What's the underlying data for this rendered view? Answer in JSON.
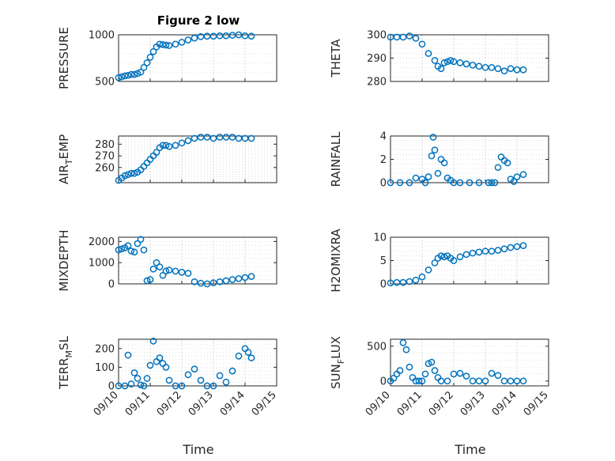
{
  "figure": {
    "title": "Figure 2 low",
    "xlabel": "Time",
    "marker_color": "#0072BD",
    "grid": "dotted",
    "x_ticks": [
      "09/10",
      "09/11",
      "09/12",
      "09/13",
      "09/14",
      "09/15"
    ]
  },
  "chart_data": [
    {
      "type": "scatter",
      "ylabel": "PRESSURE",
      "ylabel_sub": "",
      "ylabel_tail": "",
      "ylim": [
        500,
        1000
      ],
      "yticks": [
        500,
        1000
      ],
      "xlim": [
        0,
        5
      ],
      "grid": true,
      "x": [
        0.0,
        0.1,
        0.2,
        0.3,
        0.4,
        0.5,
        0.6,
        0.7,
        0.8,
        0.9,
        1.0,
        1.1,
        1.2,
        1.3,
        1.4,
        1.5,
        1.6,
        1.8,
        2.0,
        2.2,
        2.4,
        2.6,
        2.8,
        3.0,
        3.2,
        3.4,
        3.6,
        3.8,
        4.0,
        4.2
      ],
      "y": [
        540,
        550,
        560,
        565,
        575,
        575,
        585,
        600,
        650,
        700,
        760,
        820,
        870,
        900,
        895,
        890,
        885,
        900,
        920,
        945,
        965,
        980,
        985,
        985,
        990,
        990,
        995,
        1000,
        990,
        985
      ]
    },
    {
      "type": "scatter",
      "ylabel": "THETA",
      "ylabel_sub": "",
      "ylabel_tail": "",
      "ylim": [
        280,
        300
      ],
      "yticks": [
        280,
        290,
        300
      ],
      "xlim": [
        0,
        5
      ],
      "grid": true,
      "x": [
        0.0,
        0.2,
        0.4,
        0.6,
        0.8,
        1.0,
        1.2,
        1.4,
        1.5,
        1.6,
        1.7,
        1.8,
        1.9,
        2.0,
        2.2,
        2.4,
        2.6,
        2.8,
        3.0,
        3.2,
        3.4,
        3.6,
        3.8,
        4.0,
        4.2
      ],
      "y": [
        299,
        299,
        299,
        299.5,
        298.5,
        296,
        292,
        289,
        286.5,
        285.5,
        288,
        288.5,
        289,
        288.5,
        288,
        287.5,
        287,
        286.5,
        286,
        286,
        285.5,
        284.5,
        285.5,
        285,
        285
      ]
    },
    {
      "type": "scatter",
      "ylabel": "AIR",
      "ylabel_sub": "T",
      "ylabel_tail": "EMP",
      "ylim": [
        247,
        287
      ],
      "yticks": [
        260,
        270,
        280
      ],
      "xlim": [
        0,
        5
      ],
      "grid": true,
      "x": [
        0.0,
        0.1,
        0.2,
        0.3,
        0.4,
        0.5,
        0.6,
        0.7,
        0.8,
        0.9,
        1.0,
        1.1,
        1.2,
        1.3,
        1.4,
        1.5,
        1.6,
        1.8,
        2.0,
        2.2,
        2.4,
        2.6,
        2.8,
        3.0,
        3.2,
        3.4,
        3.6,
        3.8,
        4.0,
        4.2
      ],
      "y": [
        249,
        251,
        253,
        254,
        255,
        255,
        256,
        258,
        261,
        264,
        267,
        270,
        273,
        277,
        279,
        279,
        278,
        279,
        281,
        283,
        285,
        286,
        286,
        285,
        286,
        286,
        286,
        285,
        285,
        285
      ]
    },
    {
      "type": "scatter",
      "ylabel": "RAINFALL",
      "ylabel_sub": "",
      "ylabel_tail": "",
      "ylim": [
        0,
        4
      ],
      "yticks": [
        0,
        2,
        4
      ],
      "xlim": [
        0,
        5
      ],
      "grid": true,
      "x": [
        0.0,
        0.3,
        0.6,
        0.8,
        1.0,
        1.1,
        1.2,
        1.3,
        1.35,
        1.4,
        1.5,
        1.6,
        1.7,
        1.8,
        1.9,
        2.0,
        2.2,
        2.5,
        2.8,
        3.1,
        3.2,
        3.3,
        3.4,
        3.5,
        3.6,
        3.7,
        3.8,
        3.9,
        4.0,
        4.2
      ],
      "y": [
        0,
        0,
        0,
        0.4,
        0.3,
        0,
        0.5,
        2.3,
        3.9,
        2.8,
        0.8,
        2.0,
        1.7,
        0.4,
        0.2,
        0,
        0,
        0,
        0,
        0,
        0,
        0,
        1.3,
        2.2,
        1.9,
        1.7,
        0.3,
        0.1,
        0.5,
        0.7
      ]
    },
    {
      "type": "scatter",
      "ylabel": "MIXDEPTH",
      "ylabel_sub": "",
      "ylabel_tail": "",
      "ylim": [
        0,
        2200
      ],
      "yticks": [
        0,
        1000,
        2000
      ],
      "xlim": [
        0,
        5
      ],
      "grid": true,
      "x": [
        0.0,
        0.1,
        0.2,
        0.3,
        0.4,
        0.5,
        0.6,
        0.7,
        0.8,
        0.9,
        1.0,
        1.1,
        1.2,
        1.3,
        1.4,
        1.5,
        1.6,
        1.8,
        2.0,
        2.2,
        2.4,
        2.6,
        2.8,
        3.0,
        3.2,
        3.4,
        3.6,
        3.8,
        4.0,
        4.2
      ],
      "y": [
        1600,
        1650,
        1700,
        1800,
        1550,
        1500,
        1900,
        2100,
        1600,
        150,
        200,
        700,
        1000,
        800,
        400,
        600,
        650,
        600,
        550,
        500,
        100,
        30,
        0,
        50,
        100,
        150,
        200,
        250,
        300,
        350
      ]
    },
    {
      "type": "scatter",
      "ylabel": "H2OMIXRA",
      "ylabel_sub": "",
      "ylabel_tail": "",
      "ylim": [
        0,
        10
      ],
      "yticks": [
        0,
        5,
        10
      ],
      "xlim": [
        0,
        5
      ],
      "grid": true,
      "x": [
        0.0,
        0.2,
        0.4,
        0.6,
        0.8,
        1.0,
        1.2,
        1.4,
        1.5,
        1.6,
        1.7,
        1.8,
        1.9,
        2.0,
        2.2,
        2.4,
        2.6,
        2.8,
        3.0,
        3.2,
        3.4,
        3.6,
        3.8,
        4.0,
        4.2
      ],
      "y": [
        0.2,
        0.3,
        0.3,
        0.5,
        0.8,
        1.5,
        3.0,
        4.5,
        5.5,
        6.0,
        5.8,
        6.0,
        5.5,
        5.0,
        5.8,
        6.3,
        6.6,
        6.8,
        7.0,
        7.0,
        7.2,
        7.5,
        7.8,
        8.0,
        8.2
      ]
    },
    {
      "type": "scatter",
      "ylabel": "TERR",
      "ylabel_sub": "M",
      "ylabel_tail": "SL",
      "ylim": [
        0,
        250
      ],
      "yticks": [
        0,
        100,
        200
      ],
      "xlim": [
        0,
        5
      ],
      "grid": true,
      "x": [
        0.0,
        0.2,
        0.3,
        0.4,
        0.5,
        0.6,
        0.7,
        0.8,
        0.9,
        1.0,
        1.1,
        1.2,
        1.3,
        1.4,
        1.5,
        1.6,
        1.8,
        2.0,
        2.2,
        2.4,
        2.6,
        2.8,
        3.0,
        3.2,
        3.4,
        3.6,
        3.8,
        4.0,
        4.1,
        4.2
      ],
      "y": [
        0,
        0,
        165,
        10,
        70,
        40,
        5,
        0,
        40,
        110,
        240,
        130,
        150,
        120,
        100,
        30,
        0,
        0,
        60,
        90,
        30,
        0,
        0,
        55,
        20,
        80,
        160,
        200,
        180,
        150
      ]
    },
    {
      "type": "scatter",
      "ylabel": "SUN",
      "ylabel_sub": "F",
      "ylabel_tail": "LUX",
      "ylim": [
        -70,
        600
      ],
      "yticks": [
        0,
        500
      ],
      "xlim": [
        0,
        5
      ],
      "grid": true,
      "x": [
        0.0,
        0.1,
        0.2,
        0.3,
        0.4,
        0.5,
        0.6,
        0.7,
        0.8,
        0.9,
        1.0,
        1.1,
        1.2,
        1.3,
        1.4,
        1.5,
        1.6,
        1.8,
        2.0,
        2.2,
        2.4,
        2.6,
        2.8,
        3.0,
        3.2,
        3.4,
        3.6,
        3.8,
        4.0,
        4.2
      ],
      "y": [
        0,
        40,
        100,
        150,
        550,
        450,
        200,
        50,
        0,
        0,
        0,
        100,
        250,
        270,
        150,
        50,
        0,
        0,
        100,
        110,
        70,
        0,
        0,
        0,
        110,
        80,
        0,
        0,
        0,
        0
      ]
    }
  ]
}
